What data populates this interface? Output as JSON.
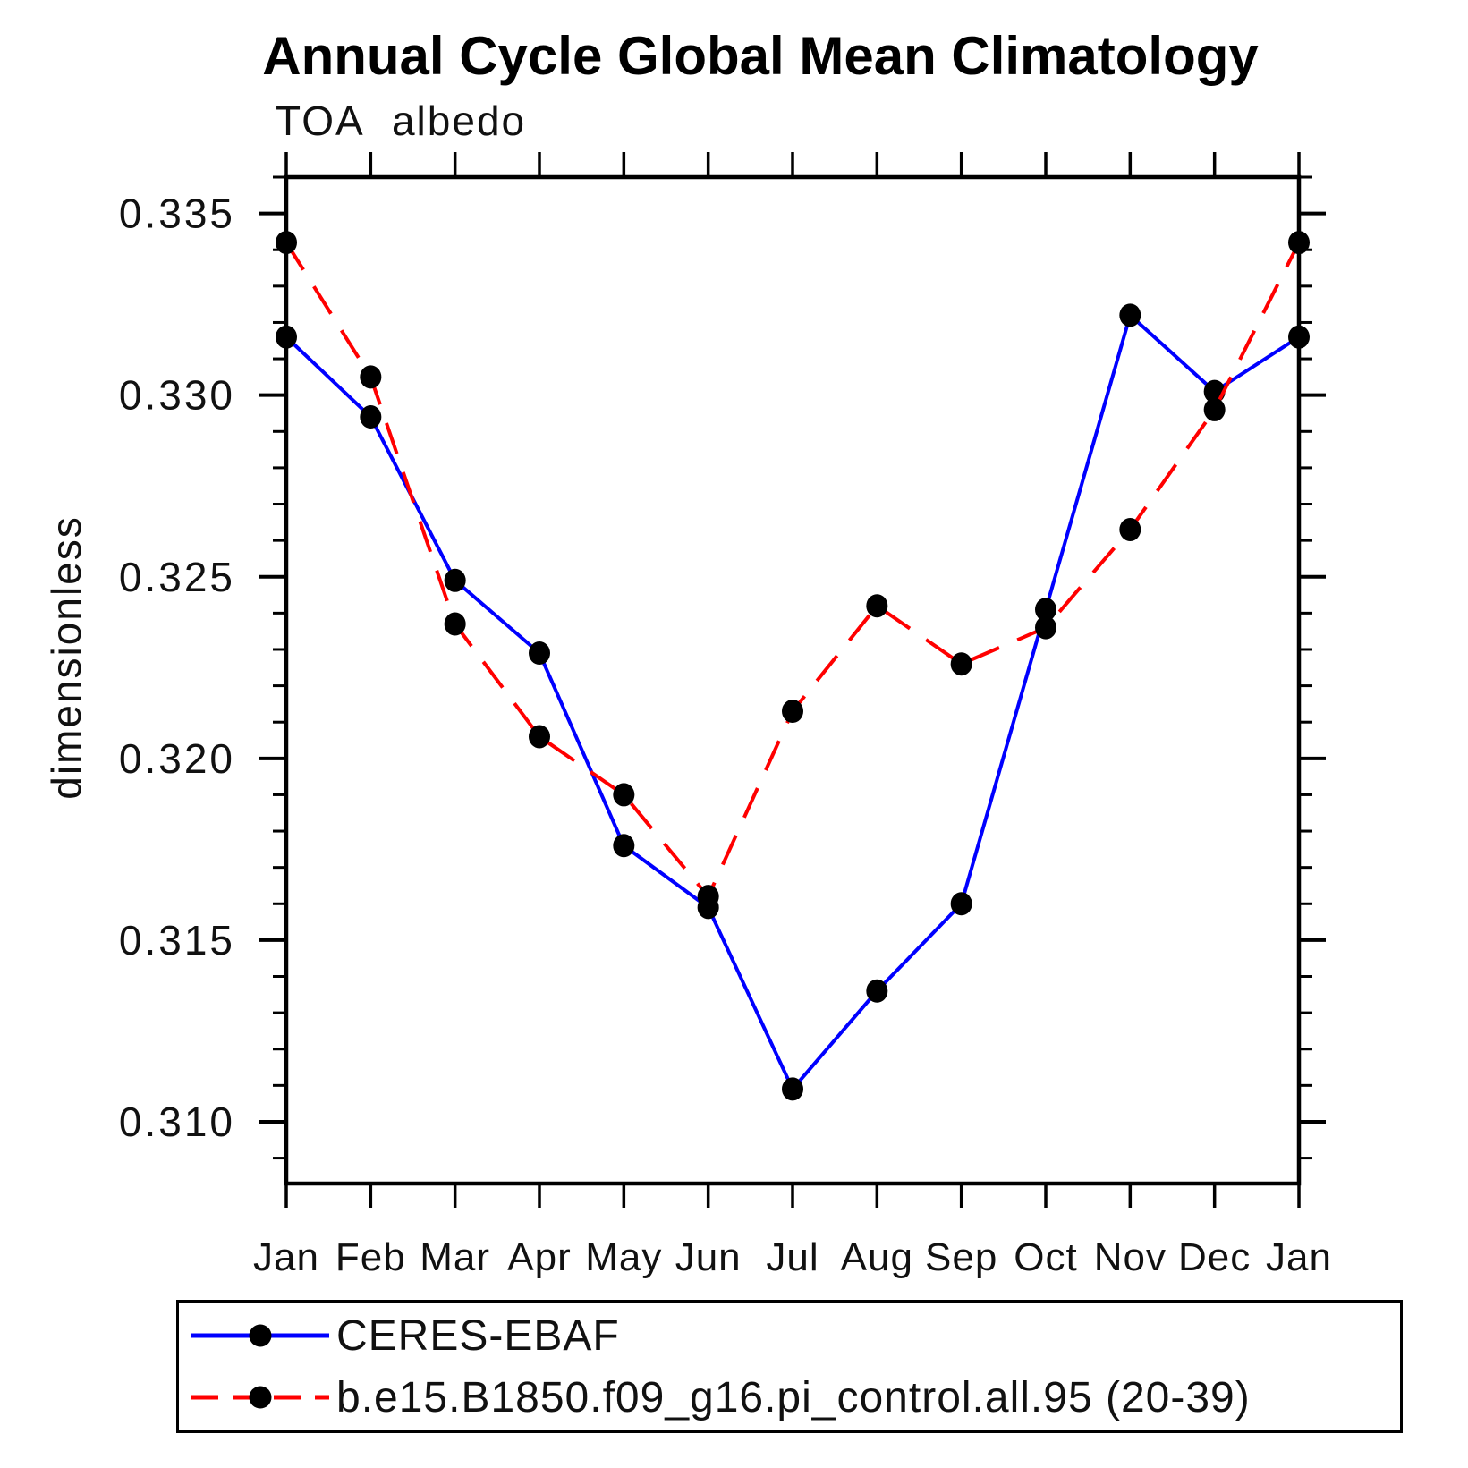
{
  "chart_data": {
    "type": "line",
    "title": "Annual Cycle Global Mean Climatology",
    "subtitle": "TOA albedo",
    "ylabel": "dimensionless",
    "x_categories": [
      "Jan",
      "Feb",
      "Mar",
      "Apr",
      "May",
      "Jun",
      "Jul",
      "Aug",
      "Sep",
      "Oct",
      "Nov",
      "Dec",
      "Jan"
    ],
    "ylim": [
      0.3083,
      0.336
    ],
    "y_major_ticks": [
      0.31,
      0.315,
      0.32,
      0.325,
      0.33,
      0.335
    ],
    "y_minor_step": 0.001,
    "grid": false,
    "legend_position": "bottom-left",
    "axis_color": "#000000",
    "marker_color": "#000000",
    "series": [
      {
        "name": "CERES-EBAF",
        "color": "#0000ff",
        "line_style": "solid",
        "marker": "filled-circle",
        "values": [
          0.3316,
          0.3294,
          0.3249,
          0.3229,
          0.3176,
          0.3159,
          0.3109,
          0.3136,
          0.316,
          0.3241,
          0.3322,
          0.3301,
          0.3316
        ]
      },
      {
        "name": "b.e15.B1850.f09_g16.pi_control.all.95 (20-39)",
        "color": "#ff0000",
        "line_style": "dashed",
        "marker": "filled-circle",
        "values": [
          0.3342,
          0.3305,
          0.3237,
          0.3206,
          0.319,
          0.3162,
          0.3213,
          0.3242,
          0.3226,
          0.3236,
          0.3263,
          0.3296,
          0.3342
        ]
      }
    ]
  }
}
